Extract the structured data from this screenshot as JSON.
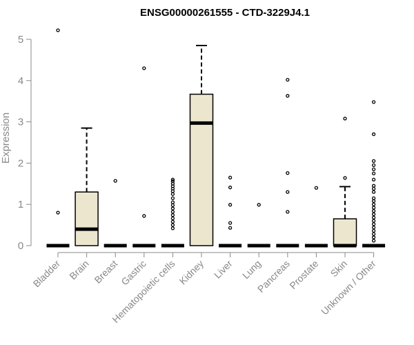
{
  "chart_data": {
    "type": "box",
    "title": "ENSG00000261555 - CTD-3229J4.1",
    "xlabel": "",
    "ylabel": "Expression",
    "ylim": [
      0,
      5.25
    ],
    "yticks": [
      0,
      1,
      2,
      3,
      4,
      5
    ],
    "box_fill": "#ede6cf",
    "categories": [
      "Bladder",
      "Brain",
      "Breast",
      "Gastric",
      "Hematopoietic cells",
      "Kidney",
      "Liver",
      "Lung",
      "Pancreas",
      "Prostate",
      "Skin",
      "Unknown / Other"
    ],
    "boxes": [
      {
        "q1": 0,
        "median": 0,
        "q3": 0,
        "whisker_low": 0,
        "whisker_high": 0,
        "outliers": [
          0.8,
          5.22
        ]
      },
      {
        "q1": 0,
        "median": 0.4,
        "q3": 1.3,
        "whisker_low": 0,
        "whisker_high": 2.85,
        "outliers": []
      },
      {
        "q1": 0,
        "median": 0,
        "q3": 0,
        "whisker_low": 0,
        "whisker_high": 0,
        "outliers": [
          1.57
        ]
      },
      {
        "q1": 0,
        "median": 0,
        "q3": 0,
        "whisker_low": 0,
        "whisker_high": 0,
        "outliers": [
          0.72,
          4.3
        ]
      },
      {
        "q1": 0,
        "median": 0,
        "q3": 0,
        "whisker_low": 0,
        "whisker_high": 0,
        "outliers": [
          0.42,
          0.5,
          0.58,
          0.66,
          0.74,
          0.82,
          0.9,
          0.98,
          1.05,
          1.15,
          1.25,
          1.32,
          1.38,
          1.44,
          1.5,
          1.56,
          1.6
        ]
      },
      {
        "q1": 0,
        "median": 2.97,
        "q3": 3.67,
        "whisker_low": 0,
        "whisker_high": 4.85,
        "outliers": []
      },
      {
        "q1": 0,
        "median": 0,
        "q3": 0,
        "whisker_low": 0,
        "whisker_high": 0,
        "outliers": [
          0.43,
          0.55,
          0.99,
          1.41,
          1.65
        ]
      },
      {
        "q1": 0,
        "median": 0,
        "q3": 0,
        "whisker_low": 0,
        "whisker_high": 0,
        "outliers": [
          0.99
        ]
      },
      {
        "q1": 0,
        "median": 0,
        "q3": 0,
        "whisker_low": 0,
        "whisker_high": 0,
        "outliers": [
          0.82,
          1.3,
          1.76,
          3.63,
          4.02
        ]
      },
      {
        "q1": 0,
        "median": 0,
        "q3": 0,
        "whisker_low": 0,
        "whisker_high": 0,
        "outliers": [
          1.4
        ]
      },
      {
        "q1": 0,
        "median": 0,
        "q3": 0.65,
        "whisker_low": 0,
        "whisker_high": 1.43,
        "outliers": [
          1.64,
          3.08
        ]
      },
      {
        "q1": 0,
        "median": 0,
        "q3": 0,
        "whisker_low": 0,
        "whisker_high": 0,
        "outliers": [
          0.12,
          0.2,
          0.28,
          0.36,
          0.44,
          0.52,
          0.6,
          0.68,
          0.76,
          0.84,
          0.92,
          1.0,
          1.08,
          1.15,
          1.3,
          1.38,
          1.45,
          1.6,
          1.75,
          1.85,
          1.95,
          2.05,
          2.7,
          3.48
        ]
      }
    ]
  }
}
